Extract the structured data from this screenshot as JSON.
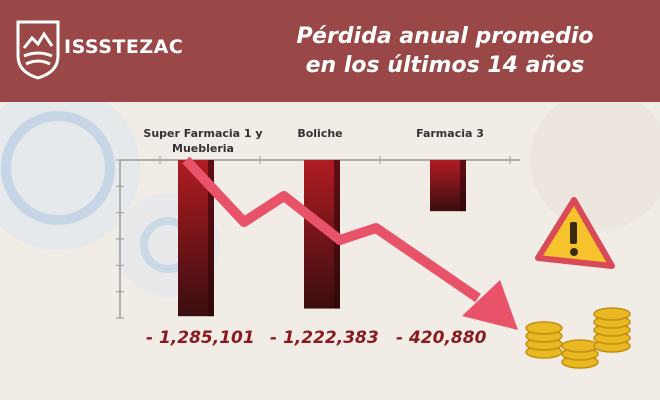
{
  "header": {
    "brand": "ISSSTEZAC",
    "title_line1": "Pérdida anual promedio",
    "title_line2": "en los últimos 14 años"
  },
  "colors": {
    "header_bg": "#9a4747",
    "bar_dark": "#3a0d0f",
    "bar_red": "#b01c22",
    "value_text": "#8a1a1f",
    "arrow": "#e8536a",
    "coin": "#e8b923",
    "warning": "#f6c32c"
  },
  "chart_data": {
    "type": "bar",
    "categories": [
      "Super Farmacia 1 y Muebleria",
      "Boliche",
      "Farmacia 3"
    ],
    "values": [
      -1285101,
      -1222383,
      -420880
    ],
    "value_labels": [
      "- 1,285,101",
      "- 1,222,383",
      "- 420,880"
    ],
    "ylim": [
      -1300000,
      0
    ],
    "title": "Pérdida anual promedio en los últimos 14 años"
  },
  "icons": [
    "logo-icon",
    "gear-icon",
    "warning-icon",
    "coins-icon",
    "trend-down-arrow-icon"
  ]
}
